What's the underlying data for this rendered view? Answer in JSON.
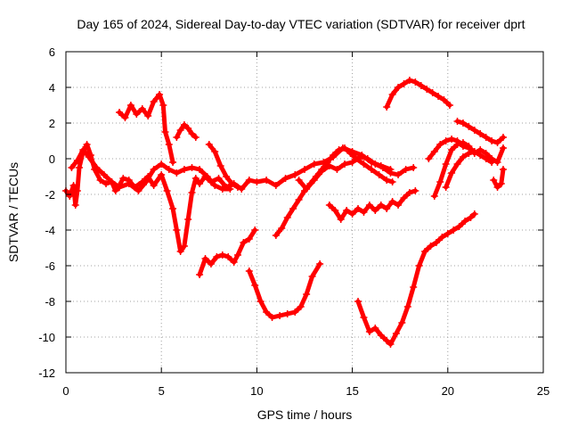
{
  "chart_data": {
    "type": "scatter",
    "title": "Day 165 of 2024, Sidereal Day-to-day VTEC variation (SDTVAR) for receiver dprt",
    "xlabel": "GPS time / hours",
    "ylabel": "SDTVAR / TECUs",
    "xlim": [
      0,
      25
    ],
    "ylim": [
      -12,
      6
    ],
    "xticks": [
      "0",
      "5",
      "10",
      "15",
      "20",
      "25"
    ],
    "yticks": [
      "-12",
      "-10",
      "-8",
      "-6",
      "-4",
      "-2",
      "0",
      "2",
      "4",
      "6"
    ],
    "grid": true,
    "color": "#ff0000",
    "series": [
      {
        "values": [
          [
            0.0,
            -1.8
          ],
          [
            0.2,
            -2.1
          ],
          [
            0.4,
            -1.5
          ],
          [
            0.5,
            -2.6
          ],
          [
            0.6,
            -1.8
          ],
          [
            0.7,
            -0.5
          ],
          [
            0.9,
            0.4
          ],
          [
            1.1,
            0.8
          ],
          [
            1.3,
            0.2
          ],
          [
            1.5,
            -0.6
          ],
          [
            1.8,
            -1.2
          ],
          [
            2.1,
            -1.4
          ],
          [
            2.4,
            -1.3
          ],
          [
            2.6,
            -1.8
          ],
          [
            2.8,
            -1.5
          ],
          [
            3.0,
            -1.1
          ],
          [
            3.3,
            -1.2
          ],
          [
            3.6,
            -1.6
          ],
          [
            4.0,
            -1.3
          ],
          [
            4.3,
            -1.0
          ],
          [
            4.6,
            -1.5
          ],
          [
            5.0,
            -0.9
          ],
          [
            5.3,
            -1.8
          ],
          [
            5.6,
            -2.8
          ],
          [
            5.8,
            -4.0
          ],
          [
            6.0,
            -5.2
          ],
          [
            6.2,
            -4.9
          ],
          [
            6.4,
            -3.4
          ],
          [
            6.6,
            -1.9
          ],
          [
            6.8,
            -1.1
          ],
          [
            7.0,
            -1.4
          ],
          [
            7.3,
            -1.0
          ],
          [
            7.6,
            -1.3
          ],
          [
            8.0,
            -1.1
          ],
          [
            8.4,
            -1.6
          ],
          [
            8.8,
            -1.4
          ],
          [
            9.2,
            -1.7
          ],
          [
            9.6,
            -1.2
          ],
          [
            10.0,
            -1.3
          ],
          [
            10.5,
            -1.2
          ],
          [
            11.0,
            -1.5
          ],
          [
            11.5,
            -1.1
          ],
          [
            12.0,
            -0.9
          ],
          [
            12.5,
            -0.6
          ],
          [
            13.0,
            -0.3
          ],
          [
            13.5,
            -0.2
          ],
          [
            14.0,
            0.1
          ],
          [
            14.5,
            0.6
          ],
          [
            15.0,
            0.4
          ],
          [
            15.5,
            0.2
          ],
          [
            16.0,
            -0.2
          ],
          [
            16.5,
            -0.4
          ],
          [
            17.0,
            -0.6
          ]
        ]
      },
      {
        "values": [
          [
            2.8,
            2.6
          ],
          [
            3.1,
            2.3
          ],
          [
            3.4,
            3.0
          ],
          [
            3.7,
            2.5
          ],
          [
            4.0,
            2.8
          ],
          [
            4.3,
            2.4
          ],
          [
            4.6,
            3.2
          ],
          [
            4.9,
            3.6
          ],
          [
            5.1,
            3.0
          ],
          [
            5.2,
            1.5
          ],
          [
            5.4,
            0.8
          ],
          [
            5.6,
            -0.2
          ]
        ]
      },
      {
        "values": [
          [
            0.3,
            -0.5
          ],
          [
            0.6,
            -0.1
          ],
          [
            0.9,
            0.5
          ],
          [
            1.2,
            0.1
          ],
          [
            1.6,
            -0.5
          ],
          [
            2.0,
            -0.9
          ],
          [
            2.4,
            -1.3
          ],
          [
            2.8,
            -1.6
          ],
          [
            3.3,
            -1.4
          ],
          [
            3.8,
            -1.8
          ],
          [
            4.2,
            -1.3
          ],
          [
            4.6,
            -0.6
          ],
          [
            5.0,
            -0.3
          ],
          [
            5.4,
            -0.6
          ],
          [
            5.8,
            -0.8
          ],
          [
            6.2,
            -0.6
          ],
          [
            6.6,
            -0.5
          ],
          [
            7.0,
            -0.6
          ],
          [
            7.4,
            -1.0
          ],
          [
            7.8,
            -1.5
          ],
          [
            8.2,
            -1.7
          ],
          [
            8.6,
            -1.7
          ]
        ]
      },
      {
        "values": [
          [
            5.8,
            1.2
          ],
          [
            6.0,
            1.6
          ],
          [
            6.2,
            1.9
          ],
          [
            6.4,
            1.7
          ],
          [
            6.6,
            1.4
          ],
          [
            6.8,
            1.2
          ]
        ]
      },
      {
        "values": [
          [
            7.5,
            0.8
          ],
          [
            7.8,
            0.4
          ],
          [
            8.1,
            -0.4
          ],
          [
            8.4,
            -1.0
          ],
          [
            8.7,
            -1.4
          ],
          [
            9.0,
            -1.6
          ]
        ]
      },
      {
        "values": [
          [
            7.0,
            -6.5
          ],
          [
            7.3,
            -5.6
          ],
          [
            7.6,
            -5.9
          ],
          [
            7.9,
            -5.5
          ],
          [
            8.2,
            -5.4
          ],
          [
            8.5,
            -5.5
          ],
          [
            8.8,
            -5.8
          ],
          [
            9.0,
            -5.4
          ],
          [
            9.3,
            -4.7
          ],
          [
            9.6,
            -4.5
          ],
          [
            9.9,
            -4.0
          ]
        ]
      },
      {
        "values": [
          [
            9.6,
            -6.3
          ],
          [
            9.9,
            -7.1
          ],
          [
            10.2,
            -8.0
          ],
          [
            10.5,
            -8.6
          ],
          [
            10.8,
            -8.9
          ],
          [
            11.2,
            -8.8
          ],
          [
            11.6,
            -8.7
          ],
          [
            12.0,
            -8.6
          ],
          [
            12.3,
            -8.3
          ],
          [
            12.6,
            -7.6
          ],
          [
            12.9,
            -6.6
          ],
          [
            13.3,
            -5.9
          ]
        ]
      },
      {
        "values": [
          [
            11.0,
            -4.3
          ],
          [
            11.3,
            -3.9
          ],
          [
            11.6,
            -3.3
          ],
          [
            11.9,
            -2.8
          ],
          [
            12.2,
            -2.3
          ],
          [
            12.5,
            -1.8
          ],
          [
            12.8,
            -1.4
          ],
          [
            13.1,
            -1.0
          ],
          [
            13.4,
            -0.6
          ],
          [
            13.7,
            -0.2
          ],
          [
            14.0,
            0.2
          ],
          [
            14.3,
            0.5
          ],
          [
            14.6,
            0.6
          ],
          [
            14.9,
            0.3
          ],
          [
            15.2,
            0.0
          ],
          [
            15.6,
            -0.3
          ],
          [
            16.0,
            -0.6
          ],
          [
            16.4,
            -0.9
          ],
          [
            16.8,
            -1.2
          ],
          [
            17.1,
            -1.3
          ]
        ]
      },
      {
        "values": [
          [
            12.2,
            -1.2
          ],
          [
            12.6,
            -1.7
          ],
          [
            13.0,
            -1.2
          ],
          [
            13.4,
            -0.7
          ],
          [
            13.8,
            -0.4
          ],
          [
            14.2,
            -0.6
          ],
          [
            14.6,
            -0.3
          ],
          [
            15.0,
            -0.2
          ],
          [
            15.4,
            0.1
          ],
          [
            15.8,
            0.0
          ],
          [
            16.2,
            -0.3
          ],
          [
            16.6,
            -0.5
          ],
          [
            17.0,
            -0.8
          ],
          [
            17.4,
            -0.9
          ],
          [
            17.8,
            -0.6
          ],
          [
            18.2,
            -0.5
          ]
        ]
      },
      {
        "values": [
          [
            13.8,
            -2.6
          ],
          [
            14.1,
            -2.9
          ],
          [
            14.4,
            -3.4
          ],
          [
            14.7,
            -2.9
          ],
          [
            15.0,
            -3.1
          ],
          [
            15.3,
            -2.8
          ],
          [
            15.6,
            -3.0
          ],
          [
            15.9,
            -2.6
          ],
          [
            16.2,
            -2.9
          ],
          [
            16.5,
            -2.6
          ],
          [
            16.8,
            -2.8
          ],
          [
            17.1,
            -2.4
          ],
          [
            17.4,
            -2.6
          ],
          [
            17.7,
            -2.2
          ],
          [
            18.0,
            -1.9
          ],
          [
            18.3,
            -1.8
          ]
        ]
      },
      {
        "values": [
          [
            15.3,
            -8.0
          ],
          [
            15.6,
            -8.9
          ],
          [
            15.9,
            -9.7
          ],
          [
            16.2,
            -9.5
          ],
          [
            16.5,
            -9.9
          ],
          [
            16.8,
            -10.2
          ],
          [
            17.0,
            -10.4
          ],
          [
            17.3,
            -9.8
          ],
          [
            17.6,
            -9.2
          ],
          [
            17.9,
            -8.3
          ],
          [
            18.2,
            -7.2
          ],
          [
            18.5,
            -6.0
          ],
          [
            18.8,
            -5.2
          ],
          [
            19.1,
            -4.9
          ],
          [
            19.4,
            -4.7
          ],
          [
            19.7,
            -4.4
          ],
          [
            20.0,
            -4.2
          ],
          [
            20.3,
            -4.0
          ],
          [
            20.6,
            -3.8
          ],
          [
            20.9,
            -3.5
          ],
          [
            21.2,
            -3.3
          ],
          [
            21.4,
            -3.1
          ]
        ]
      },
      {
        "values": [
          [
            16.8,
            2.9
          ],
          [
            17.1,
            3.6
          ],
          [
            17.4,
            4.0
          ],
          [
            17.7,
            4.2
          ],
          [
            18.0,
            4.4
          ],
          [
            18.3,
            4.3
          ],
          [
            18.6,
            4.1
          ],
          [
            18.9,
            3.9
          ],
          [
            19.2,
            3.7
          ],
          [
            19.5,
            3.5
          ],
          [
            19.8,
            3.3
          ],
          [
            20.1,
            3.0
          ]
        ]
      },
      {
        "values": [
          [
            19.3,
            -2.1
          ],
          [
            19.6,
            -1.3
          ],
          [
            19.9,
            -0.3
          ],
          [
            20.2,
            0.5
          ],
          [
            20.5,
            0.8
          ],
          [
            20.8,
            0.9
          ],
          [
            21.1,
            0.7
          ],
          [
            21.4,
            0.3
          ],
          [
            21.7,
            0.5
          ],
          [
            22.0,
            0.3
          ],
          [
            22.3,
            0.0
          ],
          [
            22.6,
            -0.2
          ],
          [
            22.9,
            0.6
          ]
        ]
      },
      {
        "values": [
          [
            19.0,
            0.0
          ],
          [
            19.3,
            0.4
          ],
          [
            19.6,
            0.8
          ],
          [
            19.9,
            1.0
          ],
          [
            20.2,
            1.1
          ],
          [
            20.5,
            1.0
          ],
          [
            20.8,
            0.7
          ],
          [
            21.1,
            0.6
          ],
          [
            21.4,
            0.4
          ],
          [
            21.7,
            0.2
          ],
          [
            22.0,
            0.0
          ],
          [
            22.3,
            -0.2
          ]
        ]
      },
      {
        "values": [
          [
            19.9,
            -1.6
          ],
          [
            20.2,
            -0.8
          ],
          [
            20.5,
            -0.3
          ],
          [
            20.8,
            0.1
          ],
          [
            21.1,
            0.3
          ],
          [
            21.4,
            0.4
          ]
        ]
      },
      {
        "values": [
          [
            20.5,
            2.1
          ],
          [
            20.8,
            2.0
          ],
          [
            21.1,
            1.8
          ],
          [
            21.4,
            1.6
          ],
          [
            21.7,
            1.4
          ],
          [
            22.0,
            1.2
          ],
          [
            22.3,
            1.0
          ],
          [
            22.6,
            0.9
          ],
          [
            22.9,
            1.2
          ]
        ]
      },
      {
        "values": [
          [
            22.4,
            -1.2
          ],
          [
            22.6,
            -1.6
          ],
          [
            22.8,
            -1.4
          ],
          [
            22.9,
            -0.6
          ]
        ]
      }
    ]
  }
}
